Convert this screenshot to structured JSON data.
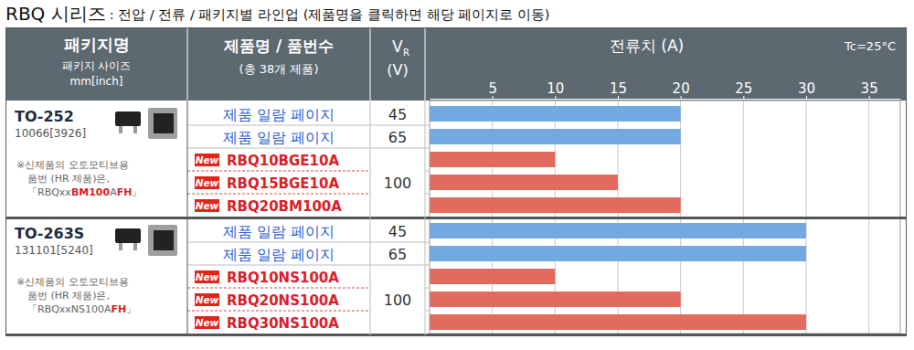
{
  "header": {
    "title": "RBQ 시리즈",
    "subtitle": ": 전압 / 전류 / 패키지별 라인업 (제품명을 클릭하면 해당 페이지로 이동)"
  },
  "table": {
    "columns": {
      "package": [
        "패키지명",
        "패키지 사이즈",
        "mm[inch]"
      ],
      "product": [
        "제품명 / 품번수",
        "(총 38개 제품)"
      ],
      "voltage": {
        "symbol": "V",
        "subscript": "R",
        "unit": "(V)"
      }
    },
    "new_badge": "New",
    "groups": [
      {
        "package": "TO-252",
        "size": "10066[3926]",
        "note": [
          "※신제품의 오토모티브용",
          "품번 (HR 제품)은,"
        ],
        "note_code": [
          {
            "text": "「RBQxx",
            "highlight": false
          },
          {
            "text": "BM100",
            "highlight": true
          },
          {
            "text": "A",
            "highlight": false
          },
          {
            "text": "FH",
            "highlight": true
          },
          {
            "text": "」",
            "highlight": false
          }
        ],
        "rows": [
          {
            "new": false,
            "voltage": 45
          },
          {
            "new": false,
            "voltage": 65
          },
          {
            "new": true,
            "voltage": 100
          },
          {
            "new": true,
            "voltage": 100
          },
          {
            "new": true,
            "voltage": 100
          }
        ]
      },
      {
        "package": "TO-263S",
        "size": "131101[5240]",
        "note": [
          "※신제품의 오토모티브용",
          "품번 (HR 제품)은,"
        ],
        "note_code": [
          {
            "text": "「RBQxxNS100A",
            "highlight": false
          },
          {
            "text": "FH",
            "highlight": true
          },
          {
            "text": "」",
            "highlight": false
          }
        ],
        "rows": [
          {
            "new": false,
            "voltage": 45
          },
          {
            "new": false,
            "voltage": 65
          },
          {
            "new": true,
            "voltage": 100
          },
          {
            "new": true,
            "voltage": 100
          },
          {
            "new": true,
            "voltage": 100
          }
        ]
      }
    ]
  },
  "chart_data": {
    "type": "bar",
    "orientation": "horizontal",
    "title": "전류치 (A)",
    "annotations": [
      "Tc=25°C"
    ],
    "categories": [
      "제품 일람 페이지",
      "제품 일람 페이지",
      "RBQ10BGE10A",
      "RBQ15BGE10A",
      "RBQ20BM100A",
      "제품 일람 페이지",
      "제품 일람 페이지",
      "RBQ10NS100A",
      "RBQ20NS100A",
      "RBQ30NS100A"
    ],
    "values": [
      20,
      20,
      10,
      15,
      20,
      30,
      30,
      10,
      20,
      30
    ],
    "colors": [
      "#72a9e0",
      "#72a9e0",
      "#e26b5d",
      "#e26b5d",
      "#e26b5d",
      "#72a9e0",
      "#72a9e0",
      "#e26b5d",
      "#e26b5d",
      "#e26b5d"
    ],
    "xlim": [
      0,
      37.5
    ],
    "xticks": [
      5,
      10,
      15,
      20,
      25,
      30,
      35
    ],
    "grid": true,
    "tick_labels": "x"
  }
}
